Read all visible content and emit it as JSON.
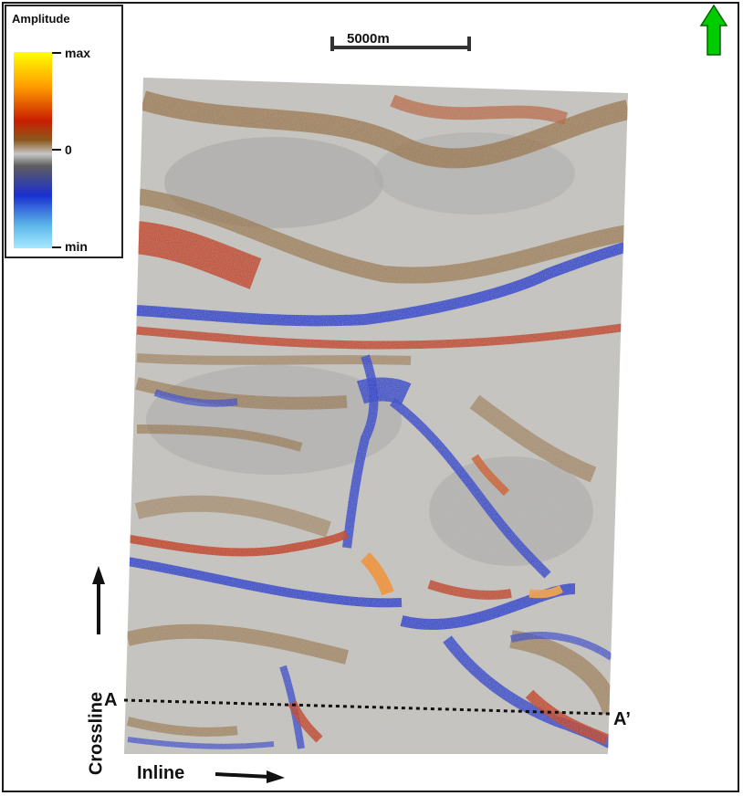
{
  "legend": {
    "title": "Amplitude",
    "max_label": "max",
    "zero_label": "0",
    "min_label": "min"
  },
  "scale_bar": {
    "label": "5000m"
  },
  "north_arrow": {
    "icon": "north-arrow-icon",
    "color": "#00cc00"
  },
  "axes": {
    "crossline_label": "Crossline",
    "inline_label": "Inline"
  },
  "section_line": {
    "start_label": "A",
    "end_label": "A’"
  },
  "colors": {
    "max": "#ffff00",
    "high": "#ff9a00",
    "red": "#c81e00",
    "brown": "#8a5a1e",
    "zero": "#c7c7c7",
    "blue": "#1a2fd0",
    "min": "#a8eaff"
  }
}
